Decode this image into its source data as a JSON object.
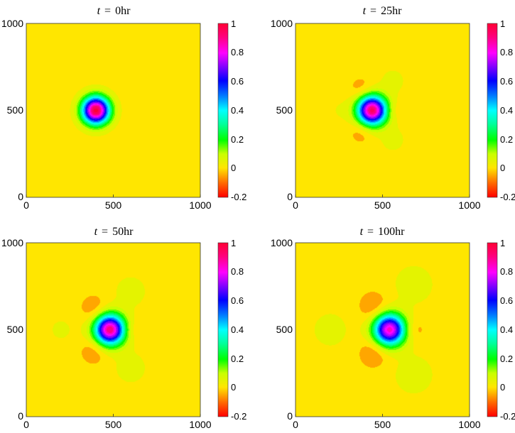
{
  "chart_data": [
    {
      "type": "heatmap",
      "title_var": "t",
      "title_op": "=",
      "title_value": "0hr",
      "xticks": [
        "0",
        "500",
        "1000"
      ],
      "yticks": [
        "0",
        "500",
        "1000"
      ],
      "xlim": [
        0,
        1000
      ],
      "ylim": [
        0,
        1000
      ],
      "colorbar": {
        "range": [
          -0.2,
          1
        ],
        "ticks": [
          "-0.2",
          "0",
          "0.2",
          "0.4",
          "0.6",
          "0.8",
          "1"
        ]
      },
      "source": {
        "x": 400,
        "y": 500,
        "peak": 1.0,
        "sigma": 55
      },
      "lobes": []
    },
    {
      "type": "heatmap",
      "title_var": "t",
      "title_op": "=",
      "title_value": "25hr",
      "xticks": [
        "0",
        "500",
        "1000"
      ],
      "yticks": [
        "0",
        "500",
        "1000"
      ],
      "xlim": [
        0,
        1000
      ],
      "ylim": [
        0,
        1000
      ],
      "colorbar": {
        "range": [
          -0.2,
          1
        ],
        "ticks": [
          "-0.2",
          "0",
          "0.2",
          "0.4",
          "0.6",
          "0.8",
          "1"
        ]
      },
      "source": {
        "x": 440,
        "y": 500,
        "peak": 0.95,
        "sigma": 58
      },
      "lobes": [
        {
          "x": 380,
          "y": 620,
          "value": -0.06,
          "sigma": 50
        },
        {
          "x": 380,
          "y": 380,
          "value": -0.06,
          "sigma": 50
        },
        {
          "x": 560,
          "y": 500,
          "value": -0.04,
          "sigma": 35
        },
        {
          "x": 560,
          "y": 670,
          "value": 0.04,
          "sigma": 60
        },
        {
          "x": 560,
          "y": 330,
          "value": 0.04,
          "sigma": 60
        },
        {
          "x": 250,
          "y": 500,
          "value": 0.025,
          "sigma": 60
        }
      ]
    },
    {
      "type": "heatmap",
      "title_var": "t",
      "title_op": "=",
      "title_value": "50hr",
      "xticks": [
        "0",
        "500",
        "1000"
      ],
      "yticks": [
        "0",
        "500",
        "1000"
      ],
      "xlim": [
        0,
        1000
      ],
      "ylim": [
        0,
        1000
      ],
      "colorbar": {
        "range": [
          -0.2,
          1
        ],
        "ticks": [
          "-0.2",
          "0",
          "0.2",
          "0.4",
          "0.6",
          "0.8",
          "1"
        ]
      },
      "source": {
        "x": 480,
        "y": 500,
        "peak": 0.92,
        "sigma": 60
      },
      "lobes": [
        {
          "x": 390,
          "y": 620,
          "value": -0.07,
          "sigma": 55
        },
        {
          "x": 390,
          "y": 380,
          "value": -0.07,
          "sigma": 55
        },
        {
          "x": 600,
          "y": 500,
          "value": -0.05,
          "sigma": 40
        },
        {
          "x": 600,
          "y": 720,
          "value": 0.045,
          "sigma": 75
        },
        {
          "x": 600,
          "y": 280,
          "value": 0.045,
          "sigma": 75
        },
        {
          "x": 200,
          "y": 500,
          "value": 0.03,
          "sigma": 80
        }
      ]
    },
    {
      "type": "heatmap",
      "title_var": "t",
      "title_op": "=",
      "title_value": "100hr",
      "xticks": [
        "0",
        "500",
        "1000"
      ],
      "yticks": [
        "0",
        "500",
        "1000"
      ],
      "xlim": [
        0,
        1000
      ],
      "ylim": [
        0,
        1000
      ],
      "colorbar": {
        "range": [
          -0.2,
          1
        ],
        "ticks": [
          "-0.2",
          "0",
          "0.2",
          "0.4",
          "0.6",
          "0.8",
          "1"
        ]
      },
      "source": {
        "x": 540,
        "y": 500,
        "peak": 0.85,
        "sigma": 62
      },
      "lobes": [
        {
          "x": 450,
          "y": 630,
          "value": -0.08,
          "sigma": 60
        },
        {
          "x": 450,
          "y": 370,
          "value": -0.08,
          "sigma": 60
        },
        {
          "x": 680,
          "y": 500,
          "value": -0.06,
          "sigma": 45
        },
        {
          "x": 680,
          "y": 760,
          "value": 0.05,
          "sigma": 90
        },
        {
          "x": 680,
          "y": 240,
          "value": 0.05,
          "sigma": 90
        },
        {
          "x": 200,
          "y": 500,
          "value": 0.035,
          "sigma": 110
        }
      ]
    }
  ]
}
